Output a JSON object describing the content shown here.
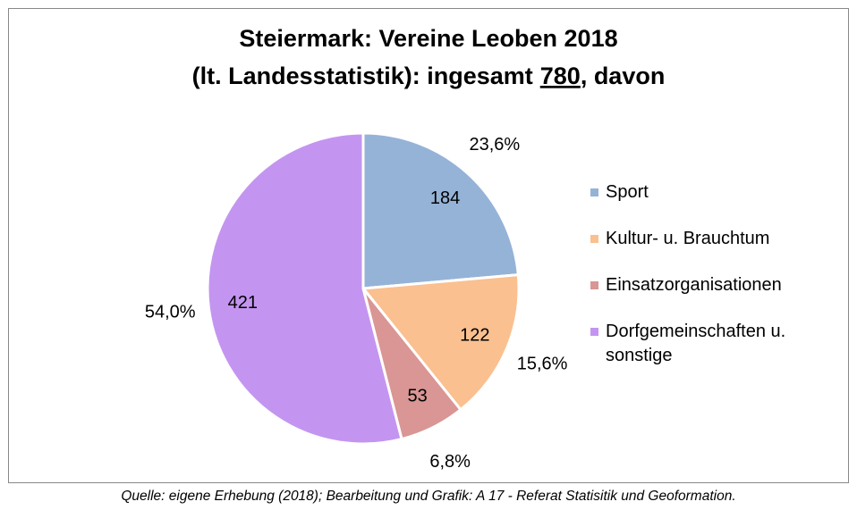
{
  "chart_data": {
    "type": "pie",
    "title": [
      "Steiermark: Vereine Leoben 2018",
      "(lt. Landesstatistik): ingesamt"
    ],
    "total": 780,
    "title_suffix": ", davon",
    "categories": [
      "Sport",
      "Kultur- u. Brauchtum",
      "Einsatzorganisationen",
      "Dorfgemeinschaften u. sonstige"
    ],
    "values": [
      184,
      122,
      53,
      421
    ],
    "percentages": [
      23.6,
      15.6,
      6.8,
      54.0
    ],
    "percentage_labels": [
      "23,6%",
      "15,6%",
      "6,8%",
      "54,0%"
    ],
    "colors": [
      "#95b3d7",
      "#fac090",
      "#d99694",
      "#c495f0"
    ],
    "legend": "right",
    "source": "Quelle: eigene Erhebung (2018); Bearbeitung und Grafik: A 17 - Referat Statisitik und Geoformation."
  }
}
